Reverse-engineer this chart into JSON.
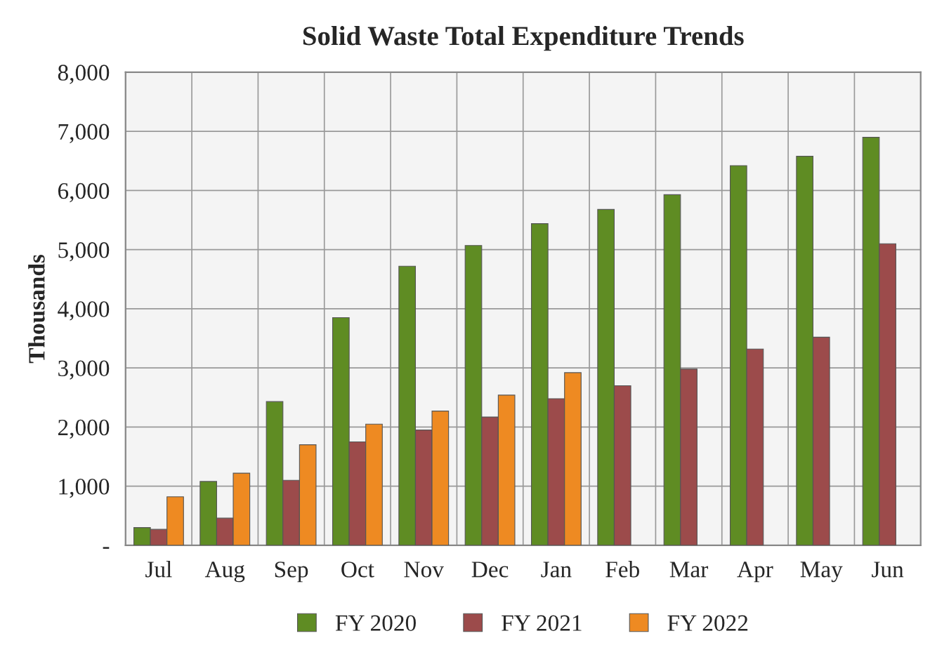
{
  "chart_data": {
    "type": "bar",
    "title": "Solid Waste Total Expenditure Trends",
    "ylabel": "Thousands",
    "categories": [
      "Jul",
      "Aug",
      "Sep",
      "Oct",
      "Nov",
      "Dec",
      "Jan",
      "Feb",
      "Mar",
      "Apr",
      "May",
      "Jun"
    ],
    "series": [
      {
        "name": "FY 2020",
        "color": "#5f8c23",
        "values": [
          300,
          1080,
          2430,
          3850,
          4720,
          5070,
          5440,
          5680,
          5930,
          6420,
          6580,
          6900
        ]
      },
      {
        "name": "FY 2021",
        "color": "#9c4b4b",
        "values": [
          270,
          460,
          1100,
          1750,
          1950,
          2170,
          2480,
          2700,
          2980,
          3320,
          3520,
          5100
        ]
      },
      {
        "name": "FY 2022",
        "color": "#ee8a22",
        "values": [
          820,
          1220,
          1700,
          2050,
          2270,
          2540,
          2920,
          null,
          null,
          null,
          null,
          null
        ]
      }
    ],
    "ylim": [
      0,
      8000
    ],
    "yticks": [
      {
        "value": 0,
        "label": "-"
      },
      {
        "value": 1000,
        "label": "1,000"
      },
      {
        "value": 2000,
        "label": "2,000"
      },
      {
        "value": 3000,
        "label": "3,000"
      },
      {
        "value": 4000,
        "label": "4,000"
      },
      {
        "value": 5000,
        "label": "5,000"
      },
      {
        "value": 6000,
        "label": "6,000"
      },
      {
        "value": 7000,
        "label": "7,000"
      },
      {
        "value": 8000,
        "label": "8,000"
      }
    ],
    "grid": true,
    "legend": "bottom"
  }
}
